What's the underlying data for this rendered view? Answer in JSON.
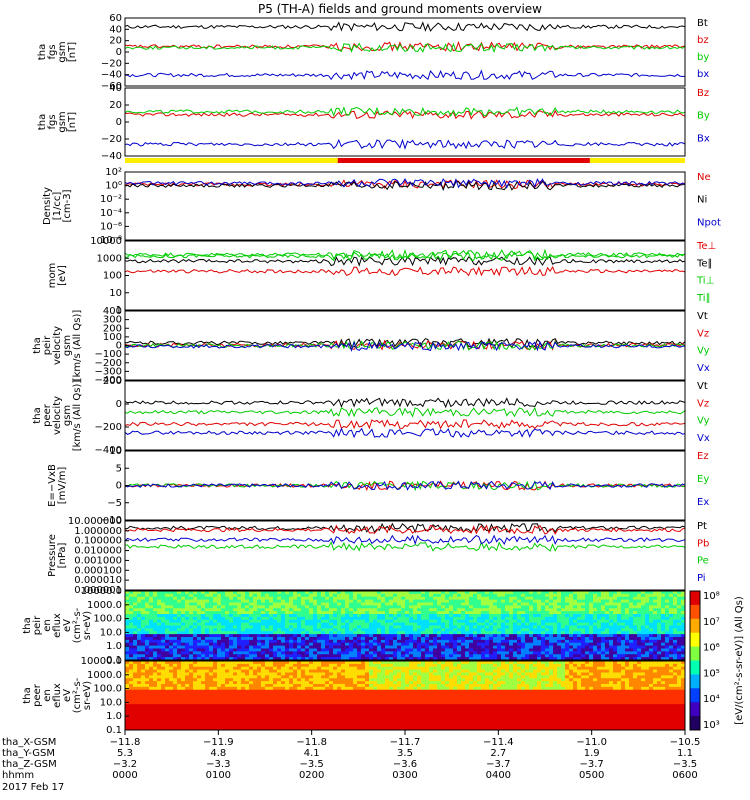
{
  "title": "P5 (TH-A) fields and ground moments overview",
  "chart_data": [
    {
      "type": "line",
      "id": "fgs_gsm_total",
      "ylabel": [
        "tha",
        "fgs",
        "gsm",
        "[nT]"
      ],
      "yticks": [
        "60",
        "40",
        "20",
        "0",
        "−20",
        "−40",
        "−60"
      ],
      "ylim": [
        -60,
        64
      ],
      "series": [
        {
          "name": "Bt",
          "color": "#000000",
          "level": 48
        },
        {
          "name": "bz",
          "color": "#e00000",
          "level": 12
        },
        {
          "name": "by",
          "color": "#00cc00",
          "level": 10
        },
        {
          "name": "bx",
          "color": "#0000cc",
          "level": -40
        }
      ]
    },
    {
      "type": "line",
      "id": "fgs_gsm",
      "ylabel": [
        "tha",
        "fgs",
        "gsm",
        "[nT]"
      ],
      "yticks": [
        "40",
        "20",
        "0",
        "−20",
        "−40"
      ],
      "ylim": [
        -52,
        40
      ],
      "series": [
        {
          "name": "Bz",
          "color": "#e00000",
          "level": 4
        },
        {
          "name": "By",
          "color": "#00cc00",
          "level": 8
        },
        {
          "name": "Bx",
          "color": "#0000cc",
          "level": -36
        }
      ]
    },
    {
      "type": "line",
      "id": "density",
      "log": true,
      "ylabel": [
        "Density",
        "[1/cc]",
        "[cm-3]"
      ],
      "yticks": [
        "10²",
        "10⁰",
        "10⁻²",
        "10⁻⁴",
        "10⁻⁶",
        "10⁻⁸"
      ],
      "ylim": [
        -9,
        2.5
      ],
      "series": [
        {
          "name": "Ne",
          "color": "#e00000",
          "level": 0.4
        },
        {
          "name": "Ni",
          "color": "#000000",
          "level": 0.2
        },
        {
          "name": "Npot",
          "color": "#0000cc",
          "level": 0.6
        }
      ]
    },
    {
      "type": "line",
      "id": "temperature",
      "log": true,
      "ylabel": [
        "mom",
        "[eV]"
      ],
      "yticks": [
        "10000",
        "1000",
        "100",
        "10",
        "1"
      ],
      "ylim": [
        0,
        4.1
      ],
      "series": [
        {
          "name": "Te⊥",
          "color": "#e00000",
          "level": 2.3
        },
        {
          "name": "Te∥",
          "color": "#000000",
          "level": 2.9
        },
        {
          "name": "Ti⊥",
          "color": "#00cc00",
          "level": 3.3
        },
        {
          "name": "Ti∥",
          "color": "#00cc00",
          "level": 3.2
        }
      ]
    },
    {
      "type": "line",
      "id": "peir_velocity",
      "ylabel": [
        "tha",
        "peir",
        "velocity",
        "gsm",
        "[km/s (All Qs)]"
      ],
      "yticks": [
        "400",
        "300",
        "200",
        "100",
        "0",
        "−100",
        "−200",
        "−300",
        "−400"
      ],
      "ylim": [
        -400,
        400
      ],
      "series": [
        {
          "name": "Vt",
          "color": "#000000",
          "level": 30
        },
        {
          "name": "Vz",
          "color": "#e00000",
          "level": 5
        },
        {
          "name": "Vy",
          "color": "#00cc00",
          "level": 0
        },
        {
          "name": "Vx",
          "color": "#0000cc",
          "level": -10
        }
      ]
    },
    {
      "type": "line",
      "id": "peer_velocity",
      "ylabel": [
        "tha",
        "peer",
        "velocity",
        "gsm",
        "[km/s (All Qs)]"
      ],
      "yticks": [
        "200",
        "0",
        "−200",
        "−400"
      ],
      "ylim": [
        -400,
        400
      ],
      "series": [
        {
          "name": "Vt",
          "color": "#000000",
          "level": 150
        },
        {
          "name": "Vz",
          "color": "#e00000",
          "level": -100
        },
        {
          "name": "Vy",
          "color": "#00cc00",
          "level": 40
        },
        {
          "name": "Vx",
          "color": "#0000cc",
          "level": -200
        }
      ]
    },
    {
      "type": "line",
      "id": "efield",
      "ylabel": [
        "E=−VxB",
        "[mV/m]"
      ],
      "yticks": [
        "10",
        "5",
        "0",
        "−5",
        "−10"
      ],
      "ylim": [
        -10,
        10
      ],
      "series": [
        {
          "name": "Ez",
          "color": "#e00000",
          "level": 0
        },
        {
          "name": "Ey",
          "color": "#00cc00",
          "level": 0
        },
        {
          "name": "Ex",
          "color": "#0000cc",
          "level": 0
        }
      ]
    },
    {
      "type": "line",
      "id": "pressure",
      "log": true,
      "ylabel": [
        "Pressure",
        "[nPa]"
      ],
      "yticks": [
        "10.000000",
        "1.000000",
        "0.100000",
        "0.010000",
        "0.001000",
        "0.000100",
        "0.000010",
        "0.000001"
      ],
      "ylim": [
        -6,
        1
      ],
      "series": [
        {
          "name": "Pt",
          "color": "#000000",
          "level": 0.3
        },
        {
          "name": "Pb",
          "color": "#e00000",
          "level": 0.1
        },
        {
          "name": "Pe",
          "color": "#00cc00",
          "level": -1.6
        },
        {
          "name": "Pi",
          "color": "#0000cc",
          "level": -0.9
        }
      ]
    },
    {
      "type": "heatmap",
      "id": "peir_spectrogram",
      "ylabel": [
        "tha",
        "peir",
        "en",
        "eflux",
        "eV",
        "(cm²-s-",
        "sr-eV)"
      ],
      "yticks": [
        "10000.0",
        "1000.0",
        "100.0",
        "10.0",
        "1.0",
        "0.1"
      ]
    },
    {
      "type": "heatmap",
      "id": "peer_spectrogram",
      "ylabel": [
        "tha",
        "peer",
        "en",
        "eflux",
        "eV",
        "(cm²-s-",
        "sr-eV)"
      ],
      "yticks": [
        "10000.0",
        "1000.0",
        "100.0",
        "10.0",
        "1.0",
        "0.1"
      ]
    }
  ],
  "colorbar": {
    "label": "[eV/(cm²-s-sr-eV)] (All Qs)",
    "ticks": [
      "10⁸",
      "10⁷",
      "10⁶",
      "10⁵",
      "10⁴",
      "10³"
    ]
  },
  "xaxis": {
    "rows": [
      {
        "label": "tha_X-GSM",
        "values": [
          "−11.8",
          "−11.9",
          "−11.8",
          "−11.7",
          "−11.4",
          "−11.0",
          "−10.5"
        ]
      },
      {
        "label": "tha_Y-GSM",
        "values": [
          "5.3",
          "4.8",
          "4.1",
          "3.5",
          "2.7",
          "1.9",
          "1.1"
        ]
      },
      {
        "label": "tha_Z-GSM",
        "values": [
          "−3.2",
          "−3.3",
          "−3.5",
          "−3.6",
          "−3.7",
          "−3.7",
          "−3.5"
        ]
      },
      {
        "label": "hhmm",
        "values": [
          "0000",
          "0100",
          "0200",
          "0300",
          "0400",
          "0500",
          "0600"
        ]
      }
    ],
    "date": "2017 Feb 17"
  }
}
